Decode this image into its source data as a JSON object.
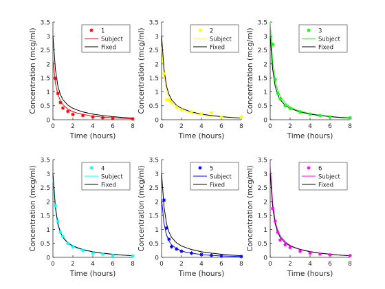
{
  "chart_data": [
    {
      "type": "line",
      "title": "",
      "xlabel": "Time (hours)",
      "ylabel": "Concentration (mcg/ml)",
      "xlim": [
        0,
        8
      ],
      "ylim": [
        0,
        3.5
      ],
      "xticks": [
        "0",
        "2",
        "4",
        "6",
        "8"
      ],
      "yticks": [
        "0",
        "0.5",
        "1",
        "1.5",
        "2",
        "2.5",
        "3",
        "3.5"
      ],
      "legend": "top-right",
      "grid": false,
      "series": [
        {
          "name": "1",
          "kind": "markers",
          "color": "#ff0000",
          "x": [
            0.25,
            0.5,
            0.75,
            1,
            1.5,
            2,
            3,
            4,
            5,
            6,
            8
          ],
          "y": [
            1.48,
            0.94,
            0.62,
            0.42,
            0.3,
            0.19,
            0.15,
            0.1,
            0.07,
            0.05,
            0.03
          ]
        },
        {
          "name": "Subject",
          "kind": "line",
          "color": "#ff0000",
          "x": [
            0,
            0.25,
            0.5,
            0.75,
            1,
            1.5,
            2,
            2.5,
            3,
            4,
            5,
            6,
            7,
            8
          ],
          "y": [
            2.15,
            1.3,
            0.9,
            0.68,
            0.54,
            0.38,
            0.29,
            0.23,
            0.19,
            0.13,
            0.09,
            0.07,
            0.05,
            0.04
          ]
        },
        {
          "name": "Fixed",
          "kind": "line",
          "color": "#000000",
          "x": [
            0,
            0.25,
            0.5,
            0.75,
            1,
            1.5,
            2,
            2.5,
            3,
            4,
            5,
            6,
            7,
            8
          ],
          "y": [
            3.0,
            1.8,
            1.2,
            0.9,
            0.72,
            0.52,
            0.41,
            0.34,
            0.28,
            0.2,
            0.15,
            0.11,
            0.08,
            0.06
          ]
        }
      ]
    },
    {
      "type": "line",
      "title": "",
      "xlabel": "Time (hours)",
      "ylabel": "Concentration (mcg/ml)",
      "xlim": [
        0,
        8
      ],
      "ylim": [
        0,
        3.5
      ],
      "xticks": [
        "0",
        "2",
        "4",
        "6",
        "8"
      ],
      "yticks": [
        "0",
        "0.5",
        "1",
        "1.5",
        "2",
        "2.5",
        "3",
        "3.5"
      ],
      "legend": "top-right",
      "grid": false,
      "series": [
        {
          "name": "2",
          "kind": "markers",
          "color": "#ffff00",
          "x": [
            0.25,
            0.5,
            0.75,
            1,
            1.5,
            2,
            3,
            4,
            5,
            6,
            8
          ],
          "y": [
            1.65,
            0.72,
            0.7,
            0.62,
            0.45,
            0.35,
            0.28,
            0.22,
            0.25,
            0.1,
            0.1
          ]
        },
        {
          "name": "Subject",
          "kind": "line",
          "color": "#ffff00",
          "x": [
            0,
            0.25,
            0.5,
            0.75,
            1,
            1.5,
            2,
            2.5,
            3,
            4,
            5,
            6,
            7,
            8
          ],
          "y": [
            2.6,
            1.55,
            1.05,
            0.8,
            0.64,
            0.46,
            0.36,
            0.29,
            0.24,
            0.17,
            0.13,
            0.1,
            0.08,
            0.06
          ]
        },
        {
          "name": "Fixed",
          "kind": "line",
          "color": "#000000",
          "x": [
            0,
            0.25,
            0.5,
            0.75,
            1,
            1.5,
            2,
            2.5,
            3,
            4,
            5,
            6,
            7,
            8
          ],
          "y": [
            3.0,
            1.8,
            1.2,
            0.9,
            0.72,
            0.52,
            0.41,
            0.34,
            0.28,
            0.2,
            0.15,
            0.11,
            0.08,
            0.06
          ]
        }
      ]
    },
    {
      "type": "line",
      "title": "",
      "xlabel": "Time (hours)",
      "ylabel": "Concentration (mcg/ml)",
      "xlim": [
        0,
        8
      ],
      "ylim": [
        0,
        3.5
      ],
      "xticks": [
        "0",
        "2",
        "4",
        "6",
        "8"
      ],
      "yticks": [
        "0",
        "0.5",
        "1",
        "1.5",
        "2",
        "2.5",
        "3",
        "3.5"
      ],
      "legend": "top-right",
      "grid": false,
      "series": [
        {
          "name": "3",
          "kind": "markers",
          "color": "#00ff00",
          "x": [
            0.25,
            0.5,
            0.75,
            1,
            1.5,
            2,
            3,
            4,
            5,
            6,
            8
          ],
          "y": [
            2.7,
            1.45,
            0.95,
            0.75,
            0.5,
            0.4,
            0.28,
            0.2,
            0.15,
            0.1,
            0.07
          ]
        },
        {
          "name": "Subject",
          "kind": "line",
          "color": "#00ff00",
          "x": [
            0,
            0.25,
            0.5,
            0.75,
            1,
            1.5,
            2,
            2.5,
            3,
            4,
            5,
            6,
            7,
            8
          ],
          "y": [
            3.5,
            2.05,
            1.4,
            1.05,
            0.84,
            0.6,
            0.46,
            0.37,
            0.31,
            0.22,
            0.16,
            0.12,
            0.09,
            0.07
          ]
        },
        {
          "name": "Fixed",
          "kind": "line",
          "color": "#000000",
          "x": [
            0,
            0.25,
            0.5,
            0.75,
            1,
            1.5,
            2,
            2.5,
            3,
            4,
            5,
            6,
            7,
            8
          ],
          "y": [
            3.0,
            1.8,
            1.2,
            0.9,
            0.72,
            0.52,
            0.41,
            0.34,
            0.28,
            0.2,
            0.15,
            0.11,
            0.08,
            0.06
          ]
        }
      ]
    },
    {
      "type": "line",
      "title": "",
      "xlabel": "Time (hours)",
      "ylabel": "Concentration (mcg/ml)",
      "xlim": [
        0,
        8
      ],
      "ylim": [
        0,
        3.5
      ],
      "xticks": [
        "0",
        "2",
        "4",
        "6",
        "8"
      ],
      "yticks": [
        "0",
        "0.5",
        "1",
        "1.5",
        "2",
        "2.5",
        "3",
        "3.5"
      ],
      "legend": "top-right",
      "grid": false,
      "series": [
        {
          "name": "4",
          "kind": "markers",
          "color": "#00ffff",
          "x": [
            0.25,
            0.5,
            0.75,
            1,
            1.5,
            2,
            3,
            4,
            5,
            6,
            8
          ],
          "y": [
            1.85,
            1.3,
            0.9,
            0.75,
            0.5,
            0.38,
            0.25,
            0.15,
            0.12,
            0.07,
            0.05
          ]
        },
        {
          "name": "Subject",
          "kind": "line",
          "color": "#00ffff",
          "x": [
            0,
            0.25,
            0.5,
            0.75,
            1,
            1.5,
            2,
            2.5,
            3,
            4,
            5,
            6,
            7,
            8
          ],
          "y": [
            2.8,
            1.7,
            1.15,
            0.88,
            0.7,
            0.5,
            0.39,
            0.32,
            0.26,
            0.19,
            0.14,
            0.1,
            0.08,
            0.06
          ]
        },
        {
          "name": "Fixed",
          "kind": "line",
          "color": "#000000",
          "x": [
            0,
            0.25,
            0.5,
            0.75,
            1,
            1.5,
            2,
            2.5,
            3,
            4,
            5,
            6,
            7,
            8
          ],
          "y": [
            3.0,
            1.8,
            1.2,
            0.9,
            0.72,
            0.52,
            0.41,
            0.34,
            0.28,
            0.2,
            0.15,
            0.11,
            0.08,
            0.06
          ]
        }
      ]
    },
    {
      "type": "line",
      "title": "",
      "xlabel": "Time (hours)",
      "ylabel": "Concentration (mcg/ml)",
      "xlim": [
        0,
        8
      ],
      "ylim": [
        0,
        3.5
      ],
      "xticks": [
        "0",
        "2",
        "4",
        "6",
        "8"
      ],
      "yticks": [
        "0",
        "0.5",
        "1",
        "1.5",
        "2",
        "2.5",
        "3",
        "3.5"
      ],
      "legend": "top-right",
      "grid": false,
      "series": [
        {
          "name": "5",
          "kind": "markers",
          "color": "#0000ff",
          "x": [
            0.25,
            0.5,
            0.75,
            1,
            1.5,
            2,
            3,
            4,
            5,
            6,
            8
          ],
          "y": [
            2.05,
            1.05,
            0.65,
            0.38,
            0.3,
            0.22,
            0.15,
            0.1,
            0.07,
            0.05,
            0.03
          ]
        },
        {
          "name": "Subject",
          "kind": "line",
          "color": "#0000ff",
          "x": [
            0,
            0.25,
            0.5,
            0.75,
            1,
            1.5,
            2,
            2.5,
            3,
            4,
            5,
            6,
            7,
            8
          ],
          "y": [
            2.1,
            1.2,
            0.8,
            0.58,
            0.45,
            0.31,
            0.23,
            0.18,
            0.15,
            0.1,
            0.07,
            0.05,
            0.04,
            0.03
          ]
        },
        {
          "name": "Fixed",
          "kind": "line",
          "color": "#000000",
          "x": [
            0,
            0.25,
            0.5,
            0.75,
            1,
            1.5,
            2,
            2.5,
            3,
            4,
            5,
            6,
            7,
            8
          ],
          "y": [
            3.0,
            1.8,
            1.2,
            0.9,
            0.72,
            0.52,
            0.41,
            0.34,
            0.28,
            0.2,
            0.15,
            0.11,
            0.08,
            0.06
          ]
        }
      ]
    },
    {
      "type": "line",
      "title": "",
      "xlabel": "Time (hours)",
      "ylabel": "Concentration (mcg/ml)",
      "xlim": [
        0,
        8
      ],
      "ylim": [
        0,
        3.5
      ],
      "xticks": [
        "0",
        "2",
        "4",
        "6",
        "8"
      ],
      "yticks": [
        "0",
        "0.5",
        "1",
        "1.5",
        "2",
        "2.5",
        "3",
        "3.5"
      ],
      "legend": "top-right",
      "grid": false,
      "series": [
        {
          "name": "6",
          "kind": "markers",
          "color": "#ff00ff",
          "x": [
            0.25,
            0.5,
            0.75,
            1,
            1.5,
            2,
            3,
            4,
            5,
            6,
            8
          ],
          "y": [
            1.75,
            1.3,
            0.9,
            0.62,
            0.45,
            0.35,
            0.22,
            0.15,
            0.12,
            0.09,
            0.06
          ]
        },
        {
          "name": "Subject",
          "kind": "line",
          "color": "#ff00ff",
          "x": [
            0,
            0.25,
            0.5,
            0.75,
            1,
            1.5,
            2,
            2.5,
            3,
            4,
            5,
            6,
            7,
            8
          ],
          "y": [
            3.3,
            1.95,
            1.3,
            0.98,
            0.78,
            0.56,
            0.43,
            0.35,
            0.29,
            0.21,
            0.15,
            0.11,
            0.08,
            0.06
          ]
        },
        {
          "name": "Fixed",
          "kind": "line",
          "color": "#000000",
          "x": [
            0,
            0.25,
            0.5,
            0.75,
            1,
            1.5,
            2,
            2.5,
            3,
            4,
            5,
            6,
            7,
            8
          ],
          "y": [
            3.0,
            1.8,
            1.2,
            0.9,
            0.72,
            0.52,
            0.41,
            0.34,
            0.28,
            0.2,
            0.15,
            0.11,
            0.08,
            0.06
          ]
        }
      ]
    }
  ]
}
